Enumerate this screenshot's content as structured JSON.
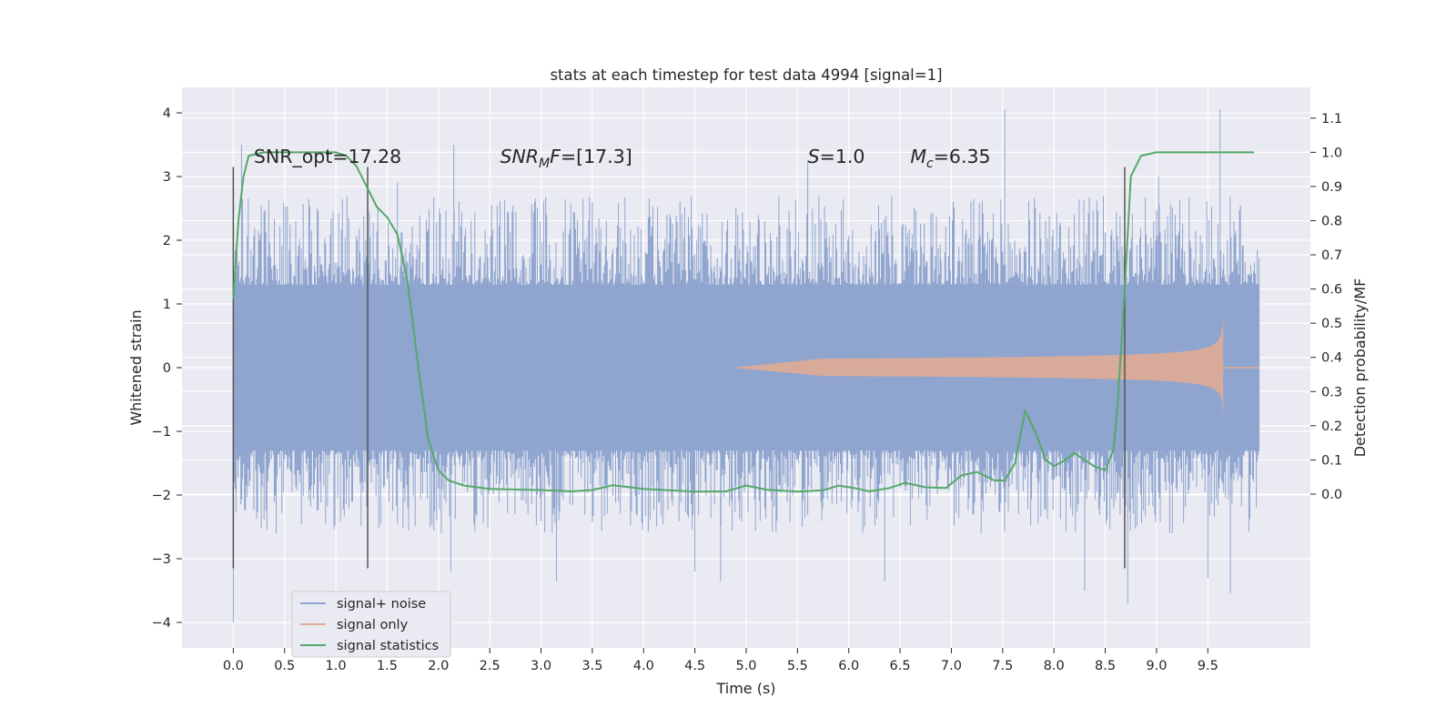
{
  "chart_data": {
    "type": "line",
    "title": "stats at each timestep for test data 4994 [signal=1]",
    "xlabel": "Time (s)",
    "ylabel": "Whitened strain",
    "ylabel_right": "Detection probability/MF",
    "xlim": [
      -0.5,
      10.5
    ],
    "ylim": [
      -4.4,
      4.4
    ],
    "ylim_right": [
      -0.45,
      1.19
    ],
    "x_ticks": [
      "0.0",
      "0.5",
      "1.0",
      "1.5",
      "2.0",
      "2.5",
      "3.0",
      "3.5",
      "4.0",
      "4.5",
      "5.0",
      "5.5",
      "6.0",
      "6.5",
      "7.0",
      "7.5",
      "8.0",
      "8.5",
      "9.0",
      "9.5"
    ],
    "y_ticks_left": [
      "4",
      "3",
      "2",
      "1",
      "0",
      "−1",
      "−2",
      "−3",
      "−4"
    ],
    "y_ticks_right": [
      "1.1",
      "1.0",
      "0.9",
      "0.8",
      "0.7",
      "0.6",
      "0.5",
      "0.4",
      "0.3",
      "0.2",
      "0.1",
      "0.0"
    ],
    "grid": true,
    "legend_position": "lower-left",
    "annotations": [
      {
        "id": "snr-opt",
        "prefix": "SNR_opt",
        "value": "=17.28",
        "x": 0.2,
        "y": 3.3
      },
      {
        "id": "snr-mf",
        "prefix": "SNR",
        "sub": "M",
        "suffix": "F",
        "value": "=[17.3]",
        "x": 2.6,
        "y": 3.3
      },
      {
        "id": "s-val",
        "prefix": "S",
        "value": "=1.0",
        "x": 5.6,
        "y": 3.3
      },
      {
        "id": "mc-val",
        "prefix": "M",
        "sub": "c",
        "value": "=6.35",
        "x": 6.6,
        "y": 3.3
      }
    ],
    "vertical_lines": [
      {
        "x": 0.0,
        "y0": -3.15,
        "y1": 3.15
      },
      {
        "x": 1.31,
        "y0": -3.15,
        "y1": 3.15
      },
      {
        "x": 8.69,
        "y0": -3.15,
        "y1": 3.15
      }
    ],
    "series": [
      {
        "name": "signal+ noise",
        "color": "#8fa5cf",
        "style": "noise",
        "x_range": [
          0.0,
          10.0
        ],
        "dense_band": [
          -1.3,
          1.3
        ],
        "upper_spikes": [
          [
            0.08,
            3.5
          ],
          [
            1.6,
            2.9
          ],
          [
            2.15,
            3.5
          ],
          [
            3.5,
            2.6
          ],
          [
            5.6,
            3.25
          ],
          [
            7.52,
            4.05
          ],
          [
            9.02,
            3.0
          ],
          [
            9.62,
            4.05
          ]
        ],
        "lower_spikes": [
          [
            0.0,
            -4.0
          ],
          [
            2.12,
            -3.2
          ],
          [
            3.15,
            -3.35
          ],
          [
            4.5,
            -3.2
          ],
          [
            4.75,
            -3.35
          ],
          [
            6.35,
            -3.35
          ],
          [
            8.3,
            -3.5
          ],
          [
            8.72,
            -3.7
          ],
          [
            9.5,
            -3.3
          ],
          [
            9.72,
            -3.55
          ]
        ]
      },
      {
        "name": "signal only",
        "color": "#e0ab94",
        "style": "chirp",
        "start": 4.85,
        "merger": 9.65,
        "end": 10.0
      },
      {
        "name": "signal statistics",
        "color": "#55a868",
        "axis": "right",
        "x": [
          0.0,
          0.05,
          0.1,
          0.15,
          0.3,
          0.5,
          0.8,
          1.0,
          1.1,
          1.2,
          1.3,
          1.4,
          1.5,
          1.6,
          1.7,
          1.8,
          1.9,
          2.0,
          2.1,
          2.25,
          2.5,
          3.0,
          3.3,
          3.5,
          3.7,
          4.0,
          4.5,
          4.8,
          5.0,
          5.2,
          5.5,
          5.75,
          5.9,
          6.05,
          6.2,
          6.4,
          6.55,
          6.75,
          6.95,
          7.1,
          7.25,
          7.42,
          7.52,
          7.62,
          7.72,
          7.82,
          7.92,
          8.0,
          8.1,
          8.2,
          8.3,
          8.4,
          8.5,
          8.58,
          8.62,
          8.69,
          8.75,
          8.85,
          9.0,
          9.5,
          9.95
        ],
        "y": [
          0.57,
          0.8,
          0.93,
          0.99,
          1.0,
          1.0,
          1.0,
          1.0,
          0.99,
          0.96,
          0.9,
          0.84,
          0.81,
          0.76,
          0.62,
          0.38,
          0.16,
          0.07,
          0.04,
          0.025,
          0.015,
          0.012,
          0.008,
          0.012,
          0.026,
          0.015,
          0.007,
          0.008,
          0.025,
          0.013,
          0.007,
          0.011,
          0.025,
          0.018,
          0.008,
          0.018,
          0.033,
          0.02,
          0.018,
          0.055,
          0.065,
          0.04,
          0.04,
          0.09,
          0.245,
          0.18,
          0.1,
          0.082,
          0.098,
          0.12,
          0.1,
          0.08,
          0.07,
          0.13,
          0.26,
          0.6,
          0.93,
          0.99,
          1.0,
          1.0,
          1.0
        ]
      }
    ]
  }
}
